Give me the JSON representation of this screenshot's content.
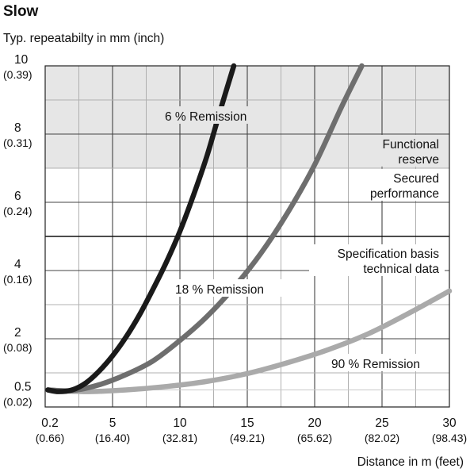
{
  "title": "Slow",
  "ylabel": "Typ. repeatabilty in mm (inch)",
  "xlabel": "Distance in m (feet)",
  "chart_data": {
    "type": "line",
    "title": "Slow",
    "xlabel": "Distance in m (feet)",
    "ylabel": "Typ. repeatabilty in mm (inch)",
    "xlim": [
      0,
      30
    ],
    "ylim": [
      0,
      10
    ],
    "grid": true,
    "x_ticks": [
      {
        "value": 0.2,
        "label": "0.2",
        "sub": "(0.66)"
      },
      {
        "value": 5,
        "label": "5",
        "sub": "(16.40)"
      },
      {
        "value": 10,
        "label": "10",
        "sub": "(32.81)"
      },
      {
        "value": 15,
        "label": "15",
        "sub": "(49.21)"
      },
      {
        "value": 20,
        "label": "20",
        "sub": "(65.62)"
      },
      {
        "value": 25,
        "label": "25",
        "sub": "(82.02)"
      },
      {
        "value": 30,
        "label": "30",
        "sub": "(98.43)"
      }
    ],
    "y_ticks": [
      {
        "value": 0.5,
        "label": "0.5",
        "sub": "(0.02)"
      },
      {
        "value": 2,
        "label": "2",
        "sub": "(0.08)"
      },
      {
        "value": 4,
        "label": "4",
        "sub": "(0.16)"
      },
      {
        "value": 6,
        "label": "6",
        "sub": "(0.24)"
      },
      {
        "value": 8,
        "label": "8",
        "sub": "(0.31)"
      },
      {
        "value": 10,
        "label": "10",
        "sub": "(0.39)"
      }
    ],
    "regions": [
      {
        "label_lines": [
          "Functional",
          "reserve"
        ],
        "y_from": 7,
        "y_to": 10,
        "color": "#e6e6e6"
      }
    ],
    "reference_lines": [
      {
        "y": 5,
        "color": "#111111"
      }
    ],
    "region_labels": [
      {
        "lines": [
          "Secured",
          "performance"
        ]
      },
      {
        "lines": [
          "Specification basis",
          "technical data"
        ]
      }
    ],
    "series": [
      {
        "name": "6 % Remission",
        "color": "#1a1a1a",
        "x": [
          0.2,
          1,
          2,
          3,
          4,
          5,
          6,
          7,
          8,
          9,
          10,
          11,
          12,
          13,
          14
        ],
        "y": [
          0.5,
          0.45,
          0.5,
          0.7,
          1.05,
          1.5,
          2.05,
          2.7,
          3.45,
          4.25,
          5.15,
          6.2,
          7.35,
          8.7,
          10.0
        ]
      },
      {
        "name": "18 % Remission",
        "color": "#6e6e6e",
        "x": [
          0.2,
          2,
          4,
          6,
          8,
          10,
          12,
          14,
          16,
          18,
          20,
          22,
          23.5
        ],
        "y": [
          0.5,
          0.48,
          0.65,
          0.95,
          1.35,
          1.95,
          2.65,
          3.5,
          4.5,
          5.7,
          7.1,
          8.8,
          10.0
        ]
      },
      {
        "name": "90 % Remission",
        "color": "#aaaaaa",
        "x": [
          0.2,
          3,
          6,
          9,
          12,
          15,
          18,
          21,
          24,
          27,
          30
        ],
        "y": [
          0.5,
          0.45,
          0.5,
          0.6,
          0.75,
          0.98,
          1.3,
          1.68,
          2.15,
          2.75,
          3.4
        ]
      }
    ],
    "series_labels": [
      "6 % Remission",
      "18 % Remission",
      "90 % Remission"
    ]
  }
}
